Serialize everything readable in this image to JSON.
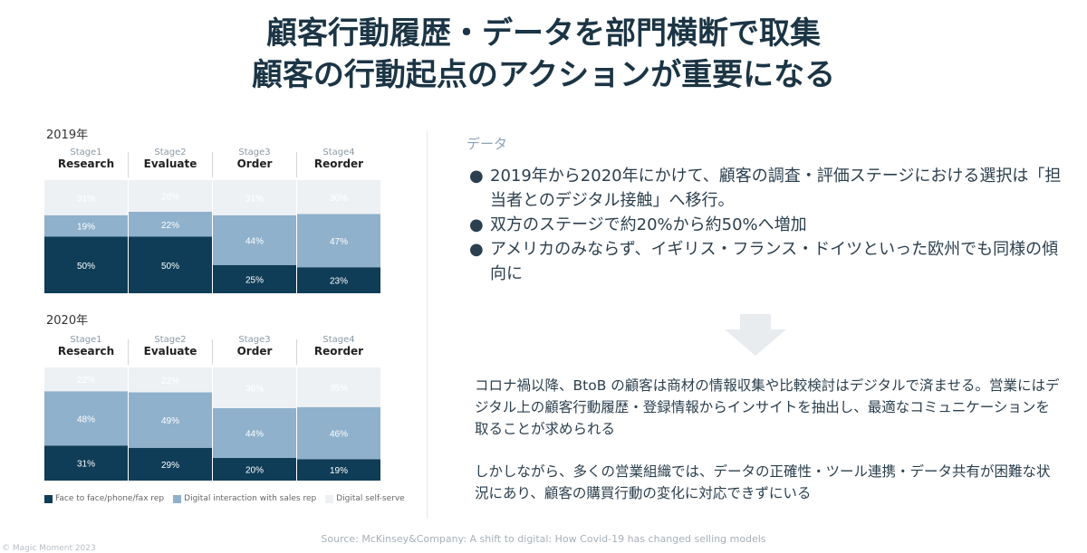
{
  "title": {
    "line1": "顧客行動履歴・データを部門横断で取集",
    "line2": "顧客の行動起点のアクションが重要になる"
  },
  "colors": {
    "face_to_face": "#0f3d57",
    "digital_interaction": "#8fb1cc",
    "self_serve": "#eef1f4"
  },
  "chart_data": [
    {
      "type": "bar",
      "stacked": true,
      "title": "2019年",
      "categories": [
        "Stage1",
        "Stage2",
        "Stage3",
        "Stage4"
      ],
      "category_names": [
        "Research",
        "Evaluate",
        "Order",
        "Reorder"
      ],
      "series": [
        {
          "name": "Face to face/phone/fax rep",
          "values": [
            50,
            50,
            25,
            23
          ]
        },
        {
          "name": "Digital interaction with sales rep",
          "values": [
            19,
            22,
            44,
            47
          ]
        },
        {
          "name": "Digital self-serve",
          "values": [
            31,
            28,
            31,
            30
          ]
        }
      ],
      "ylim": [
        0,
        100
      ]
    },
    {
      "type": "bar",
      "stacked": true,
      "title": "2020年",
      "categories": [
        "Stage1",
        "Stage2",
        "Stage3",
        "Stage4"
      ],
      "category_names": [
        "Research",
        "Evaluate",
        "Order",
        "Reorder"
      ],
      "series": [
        {
          "name": "Face to face/phone/fax rep",
          "values": [
            31,
            29,
            20,
            19
          ]
        },
        {
          "name": "Digital interaction with sales rep",
          "values": [
            48,
            49,
            44,
            46
          ]
        },
        {
          "name": "Digital self-serve",
          "values": [
            22,
            22,
            36,
            35
          ]
        }
      ],
      "ylim": [
        0,
        100
      ]
    }
  ],
  "legend": [
    "Face to face/phone/fax rep",
    "Digital interaction with sales rep",
    "Digital self-serve"
  ],
  "right": {
    "heading": "データ",
    "bullets": [
      "2019年から2020年にかけて、顧客の調査・評価ステージにおける選択は「担当者とのデジタル接触」へ移行。",
      "双方のステージで約20%から約50%へ増加",
      "アメリカのみならず、イギリス・フランス・ドイツといった欧州でも同様の傾向に"
    ],
    "para1": "コロナ禍以降、BtoB の顧客は商材の情報収集や比較検討はデジタルで済ませる。営業にはデジタル上の顧客行動履歴・登録情報からインサイトを抽出し、最適なコミュニケーションを取ることが求められる",
    "para2": "しかしながら、多くの営業組織では、データの正確性・ツール連携・データ共有が困難な状況にあり、顧客の購買行動の変化に対応できずにいる"
  },
  "source": "Source: McKinsey&Company: A shift to digital: How Covid-19 has changed selling models",
  "copyright": "© Magic Moment 2023"
}
